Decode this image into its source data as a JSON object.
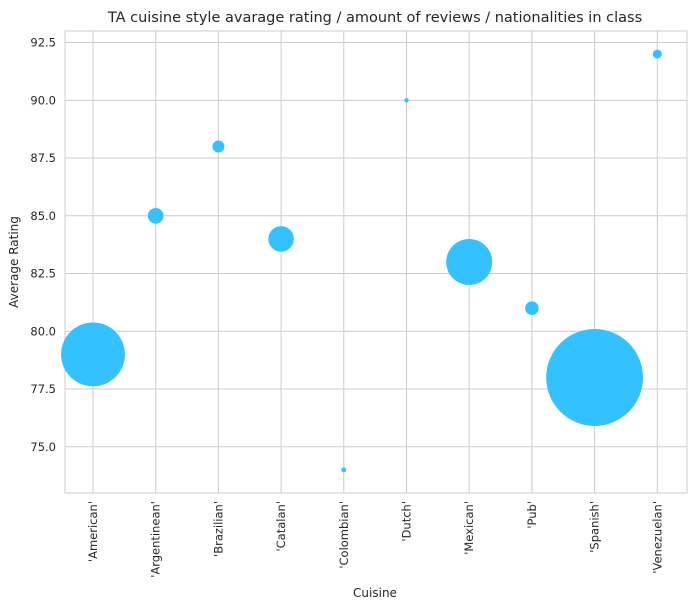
{
  "chart_data": {
    "type": "scatter",
    "title": "TA cuisine style avarage rating / amount of reviews / nationalities in class",
    "xlabel": "Cuisine",
    "ylabel": "Average Rating",
    "categories": [
      "'American'",
      "'Argentinean'",
      "'Brazilian'",
      "'Catalan'",
      "'Colombian'",
      "'Dutch'",
      "'Mexican'",
      "'Pub'",
      "'Spanish'",
      "'Venezuelan'"
    ],
    "values": [
      79.0,
      85.0,
      88.0,
      84.0,
      74.0,
      90.0,
      83.0,
      81.0,
      78.0,
      92.0
    ],
    "relative_size": [
      1000,
      60,
      35,
      160,
      6,
      4,
      520,
      45,
      2300,
      20
    ],
    "yticks": [
      75.0,
      77.5,
      80.0,
      82.5,
      85.0,
      87.5,
      90.0,
      92.5
    ],
    "ytick_labels": [
      "75.0",
      "77.5",
      "80.0",
      "82.5",
      "85.0",
      "87.5",
      "90.0",
      "92.5"
    ],
    "ylim": [
      73.0,
      93.0
    ],
    "grid": true,
    "color": "#33c2ff"
  }
}
